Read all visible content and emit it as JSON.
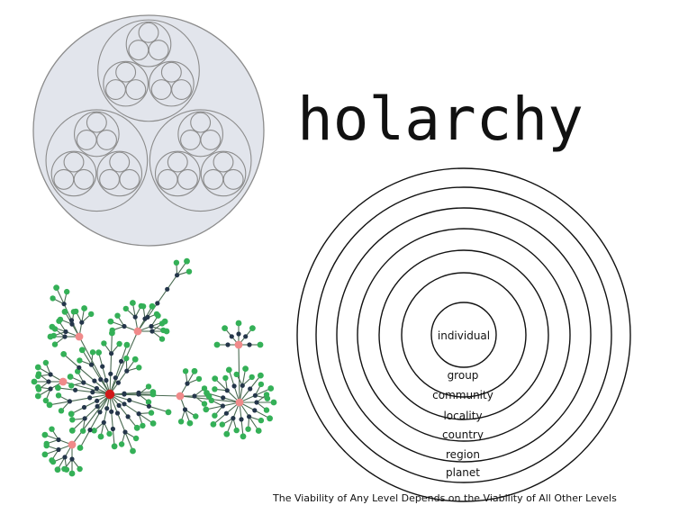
{
  "title": "holarchy",
  "rings": {
    "center_label": "individual",
    "levels": [
      "group",
      "community",
      "locality",
      "country",
      "region",
      "planet"
    ]
  },
  "caption": "The Viability of Any Level Depends on the Viability of All Other Levels",
  "colors": {
    "nested_fill": "#e2e5ec",
    "nested_stroke": "#8c8c8c",
    "ring_stroke": "#111111",
    "edge": "#4a6b52",
    "leaf_node": "#34b057",
    "mid_node": "#24364a",
    "hub_node": "#f08a8a",
    "root_node": "#d01818"
  }
}
